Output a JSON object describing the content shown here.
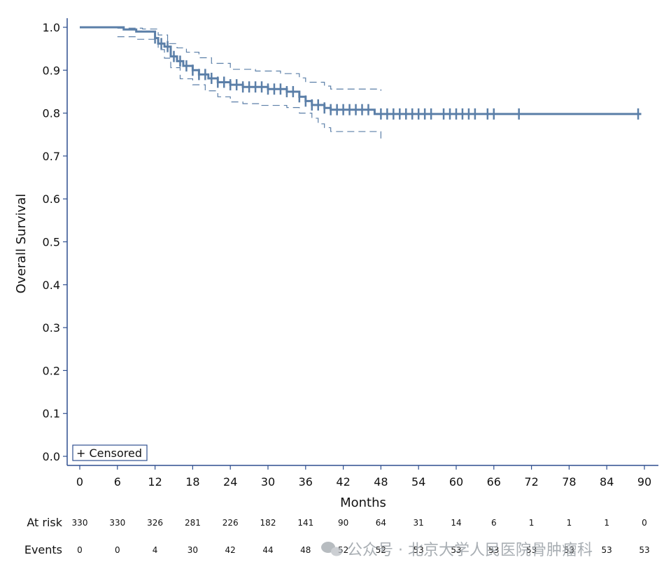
{
  "chart_data": {
    "type": "line",
    "subtype": "kaplan-meier",
    "xlabel": "Months",
    "ylabel": "Overall Survival",
    "xlim": [
      0,
      90
    ],
    "ylim": [
      0,
      1
    ],
    "xticks": [
      0,
      6,
      12,
      18,
      24,
      30,
      36,
      42,
      48,
      54,
      60,
      66,
      72,
      78,
      84,
      90
    ],
    "yticks": [
      0.0,
      0.1,
      0.2,
      0.3,
      0.4,
      0.5,
      0.6,
      0.7,
      0.8,
      0.9,
      1.0
    ],
    "ytick_labels": [
      "0.0",
      "0.1",
      "0.2",
      "0.3",
      "0.4",
      "0.5",
      "0.6",
      "0.7",
      "0.8",
      "0.9",
      "1.0"
    ],
    "grid": false,
    "color": "#5b7fa8",
    "survival_steps": [
      [
        0,
        1.0
      ],
      [
        7,
        0.995
      ],
      [
        9,
        0.99
      ],
      [
        12,
        0.975
      ],
      [
        12.5,
        0.962
      ],
      [
        13.5,
        0.955
      ],
      [
        14.5,
        0.932
      ],
      [
        15.5,
        0.921
      ],
      [
        16.5,
        0.91
      ],
      [
        18,
        0.9
      ],
      [
        19,
        0.89
      ],
      [
        20.5,
        0.881
      ],
      [
        22,
        0.872
      ],
      [
        24,
        0.866
      ],
      [
        26,
        0.861
      ],
      [
        30,
        0.856
      ],
      [
        33,
        0.85
      ],
      [
        35,
        0.838
      ],
      [
        36,
        0.828
      ],
      [
        37,
        0.819
      ],
      [
        39,
        0.812
      ],
      [
        40,
        0.808
      ],
      [
        47,
        0.798
      ],
      [
        89.5,
        0.798
      ]
    ],
    "upper_ci_steps": [
      [
        6,
        0.998
      ],
      [
        10,
        0.996
      ],
      [
        12.5,
        0.982
      ],
      [
        14,
        0.962
      ],
      [
        15.5,
        0.952
      ],
      [
        17,
        0.942
      ],
      [
        19,
        0.929
      ],
      [
        21,
        0.916
      ],
      [
        24,
        0.902
      ],
      [
        28,
        0.898
      ],
      [
        32,
        0.892
      ],
      [
        35,
        0.882
      ],
      [
        36,
        0.872
      ],
      [
        39,
        0.863
      ],
      [
        40,
        0.856
      ],
      [
        48,
        0.852
      ]
    ],
    "lower_ci_steps": [
      [
        6,
        0.978
      ],
      [
        9,
        0.972
      ],
      [
        12.5,
        0.948
      ],
      [
        13.5,
        0.928
      ],
      [
        14.5,
        0.906
      ],
      [
        16,
        0.88
      ],
      [
        18,
        0.866
      ],
      [
        20,
        0.852
      ],
      [
        22,
        0.838
      ],
      [
        24,
        0.826
      ],
      [
        26,
        0.822
      ],
      [
        29,
        0.818
      ],
      [
        33,
        0.813
      ],
      [
        35,
        0.8
      ],
      [
        37,
        0.788
      ],
      [
        38,
        0.775
      ],
      [
        39,
        0.766
      ],
      [
        40,
        0.757
      ],
      [
        47,
        0.757
      ],
      [
        48,
        0.738
      ]
    ],
    "censored_times": [
      12,
      13,
      14,
      15,
      16,
      17,
      18,
      19,
      20,
      21,
      22,
      23,
      24,
      25,
      26,
      27,
      28,
      29,
      30,
      31,
      32,
      33,
      34,
      35,
      36,
      37,
      38,
      39,
      40,
      41,
      42,
      43,
      44,
      45,
      46,
      48,
      49,
      50,
      51,
      52,
      53,
      54,
      55,
      56,
      58,
      59,
      60,
      61,
      62,
      63,
      65,
      66,
      70,
      89
    ],
    "legend": {
      "label": "+ Censored",
      "placement": "bottom-left"
    },
    "risk_table": {
      "at_risk_label": "At risk",
      "events_label": "Events",
      "times": [
        0,
        6,
        12,
        18,
        24,
        30,
        36,
        42,
        48,
        54,
        60,
        66,
        72,
        78,
        84,
        90
      ],
      "at_risk": [
        "330",
        "330",
        "326",
        "281",
        "226",
        "182",
        "141",
        "90",
        "64",
        "31",
        "14",
        "6",
        "1",
        "1",
        "1",
        "0"
      ],
      "events": [
        "0",
        "0",
        "4",
        "30",
        "42",
        "44",
        "48",
        "52",
        "52",
        "53",
        "53",
        "53",
        "53",
        "53",
        "53",
        "53"
      ]
    }
  },
  "watermark": {
    "text": "公众号 · 北京大学人民医院骨肿瘤科",
    "icon": "wechat-icon"
  }
}
